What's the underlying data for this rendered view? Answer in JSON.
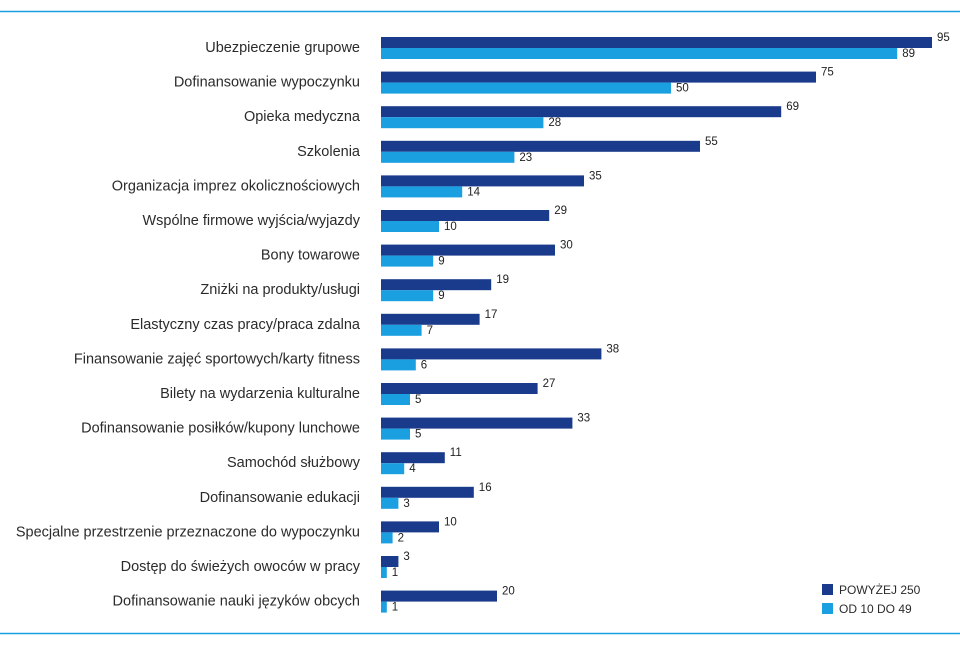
{
  "chart_data": {
    "type": "bar",
    "orientation": "horizontal",
    "categories": [
      "Ubezpieczenie grupowe",
      "Dofinansowanie wypoczynku",
      "Opieka medyczna",
      "Szkolenia",
      "Organizacja imprez okolicznościowych",
      "Wspólne firmowe wyjścia/wyjazdy",
      "Bony towarowe",
      "Zniżki na produkty/usługi",
      "Elastyczny czas pracy/praca zdalna",
      "Finansowanie zajęć sportowych/karty fitness",
      "Bilety na wydarzenia kulturalne",
      "Dofinansowanie posiłków/kupony lunchowe",
      "Samochód służbowy",
      "Dofinansowanie edukacji",
      "Specjalne przestrzenie przeznaczone do wypoczynku",
      "Dostęp do świeżych owoców w pracy",
      "Dofinansowanie nauki języków obcych"
    ],
    "series": [
      {
        "name": "POWYŻEJ 250",
        "color": "#1a3a8c",
        "values": [
          95,
          75,
          69,
          55,
          35,
          29,
          30,
          19,
          17,
          38,
          27,
          33,
          11,
          16,
          10,
          3,
          20
        ]
      },
      {
        "name": "OD 10 DO 49",
        "color": "#1a9fe0",
        "values": [
          89,
          50,
          28,
          23,
          14,
          10,
          9,
          9,
          7,
          6,
          5,
          5,
          4,
          3,
          2,
          1,
          1
        ]
      }
    ],
    "xlim": [
      0,
      100
    ],
    "grid": false,
    "legend_position": "bottom-right",
    "frame_color": "#1a9fe0"
  }
}
